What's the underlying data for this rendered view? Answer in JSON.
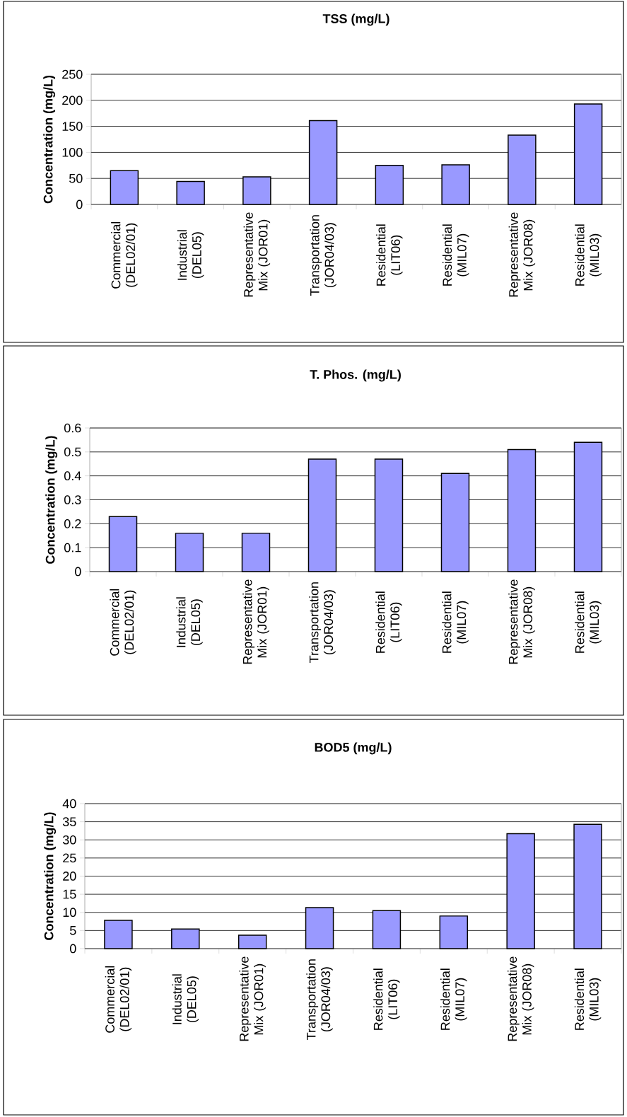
{
  "chart_data": [
    {
      "type": "bar",
      "title": "TSS (mg/L)",
      "ylabel": "Concentration (mg/L)",
      "categories": [
        "Commercial (DEL02/01)",
        "Industrial (DEL05)",
        "Representative Mix (JOR01)",
        "Transportation (JOR04/03)",
        "Residential (LIT06)",
        "Residential (MIL07)",
        "Representative Mix (JOR08)",
        "Residential (MIL03)"
      ],
      "values": [
        65,
        44,
        53,
        161,
        75,
        76,
        133,
        193
      ],
      "color": "#9999ff",
      "ylim": [
        0,
        250
      ],
      "yticks": [
        0,
        50,
        100,
        150,
        200,
        250
      ],
      "grid": "y"
    },
    {
      "type": "bar",
      "title": "T. Phos. (mg/L)",
      "ylabel": "Concentration (mg/L)",
      "categories": [
        "Commercial (DEL02/01)",
        "Industrial (DEL05)",
        "Representative Mix (JOR01)",
        "Transportation (JOR04/03)",
        "Residential (LIT06)",
        "Residential (MIL07)",
        "Representative Mix (JOR08)",
        "Residential (MIL03)"
      ],
      "values": [
        0.23,
        0.16,
        0.16,
        0.47,
        0.47,
        0.41,
        0.51,
        0.54
      ],
      "color": "#9999ff",
      "ylim": [
        0,
        0.6
      ],
      "yticks": [
        0,
        0.1,
        0.2,
        0.3,
        0.4,
        0.5,
        0.6
      ],
      "grid": "y"
    },
    {
      "type": "bar",
      "title": "BOD5 (mg/L)",
      "ylabel": "Concentration (mg/L)",
      "categories": [
        "Commercial (DEL02/01)",
        "Industrial (DEL05)",
        "Representative Mix (JOR01)",
        "Transportation (JOR04/03)",
        "Residential (LIT06)",
        "Residential (MIL07)",
        "Representative Mix (JOR08)",
        "Residential (MIL03)"
      ],
      "values": [
        7.8,
        5.4,
        3.7,
        11.3,
        10.5,
        9.0,
        31.7,
        34.3
      ],
      "color": "#9999ff",
      "ylim": [
        0,
        40
      ],
      "yticks": [
        0,
        5,
        10,
        15,
        20,
        25,
        30,
        35,
        40
      ],
      "grid": "y"
    }
  ]
}
